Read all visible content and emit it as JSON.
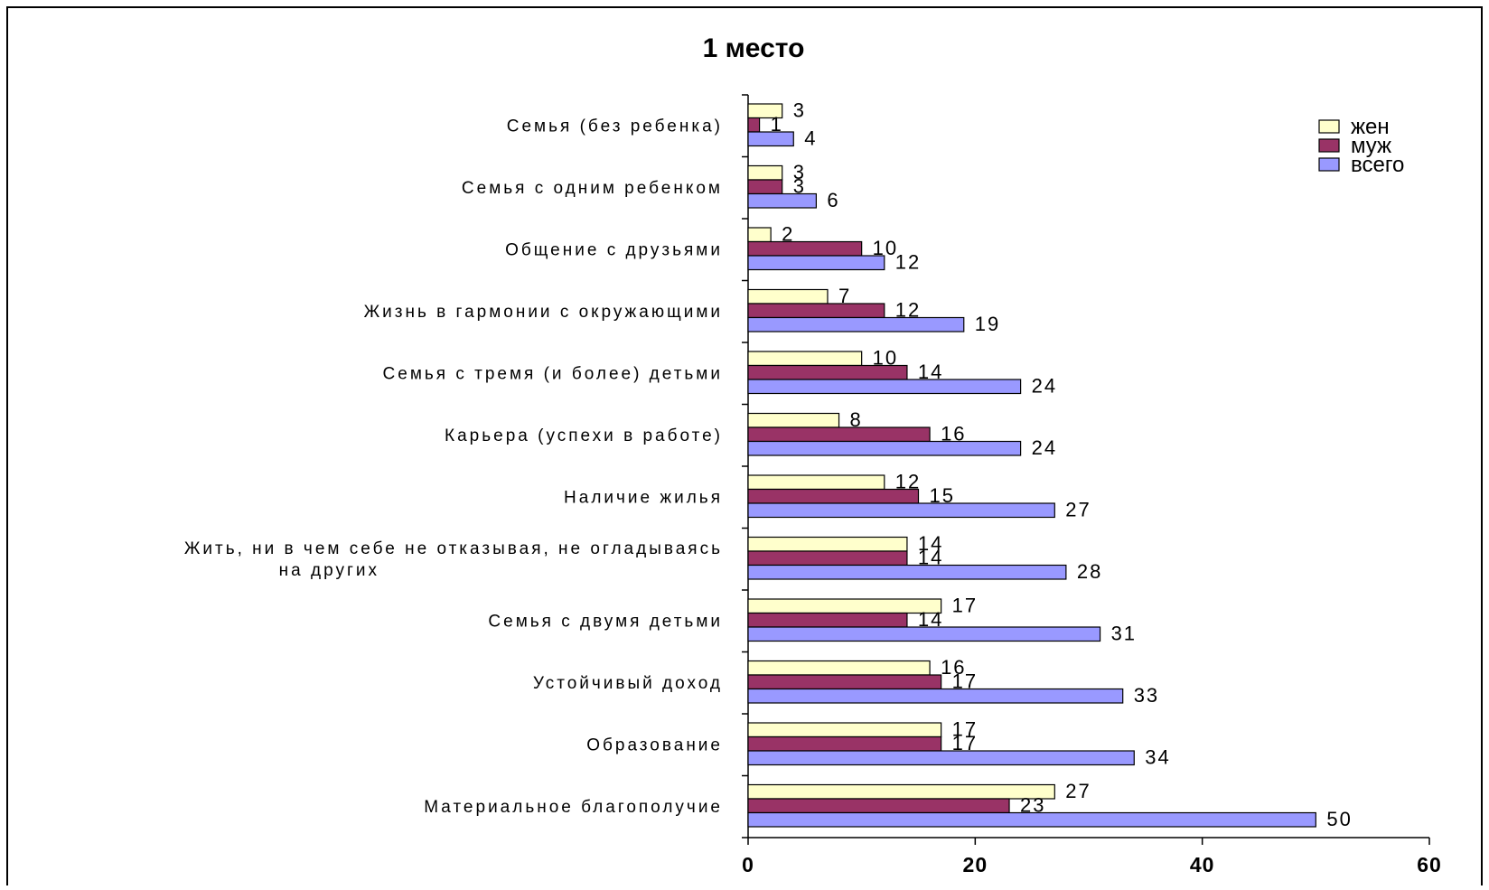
{
  "chart_data": {
    "type": "bar",
    "orientation": "horizontal",
    "title": "1 место",
    "categories": [
      "Семья (без ребенка)",
      "Семья с одним ребенком",
      "Общение с друзьями",
      "Жизнь в гармонии с окружающими",
      "Семья с тремя (и более) детьми",
      "Карьера (успехи в работе)",
      "Наличие жилья",
      "Жить, ни в чем себе не отказывая, не огладываясь на других",
      "Семья с двумя детьми",
      "Устойчивый доход",
      "Образование",
      "Материальное благополучие"
    ],
    "category_lines": [
      [
        "Семья (без ребенка)"
      ],
      [
        "Семья с одним ребенком"
      ],
      [
        "Общение с друзьями"
      ],
      [
        "Жизнь в гармонии с окружающими"
      ],
      [
        "Семья с тремя (и более) детьми"
      ],
      [
        "Карьера (успехи в работе)"
      ],
      [
        "Наличие жилья"
      ],
      [
        "Жить, ни в чем себе не отказывая, не огладываясь",
        "на других"
      ],
      [
        "Семья с двумя детьми"
      ],
      [
        "Устойчивый доход"
      ],
      [
        "Образование"
      ],
      [
        "Материальное благополучие"
      ]
    ],
    "series": [
      {
        "name": "жен",
        "color": "#FFFFCC",
        "values": [
          3,
          3,
          2,
          7,
          10,
          8,
          12,
          14,
          17,
          16,
          17,
          27
        ]
      },
      {
        "name": "муж",
        "color": "#993366",
        "values": [
          1,
          3,
          10,
          12,
          14,
          16,
          15,
          14,
          14,
          17,
          17,
          23
        ]
      },
      {
        "name": "всего",
        "color": "#9999FF",
        "values": [
          4,
          6,
          12,
          19,
          24,
          24,
          27,
          28,
          31,
          33,
          34,
          50
        ]
      }
    ],
    "xlim": [
      0,
      60
    ],
    "xticks": [
      0,
      20,
      40,
      60
    ],
    "xlabel": "",
    "ylabel": "",
    "legend_position": "top-right",
    "grid": false,
    "data_labels": true
  }
}
